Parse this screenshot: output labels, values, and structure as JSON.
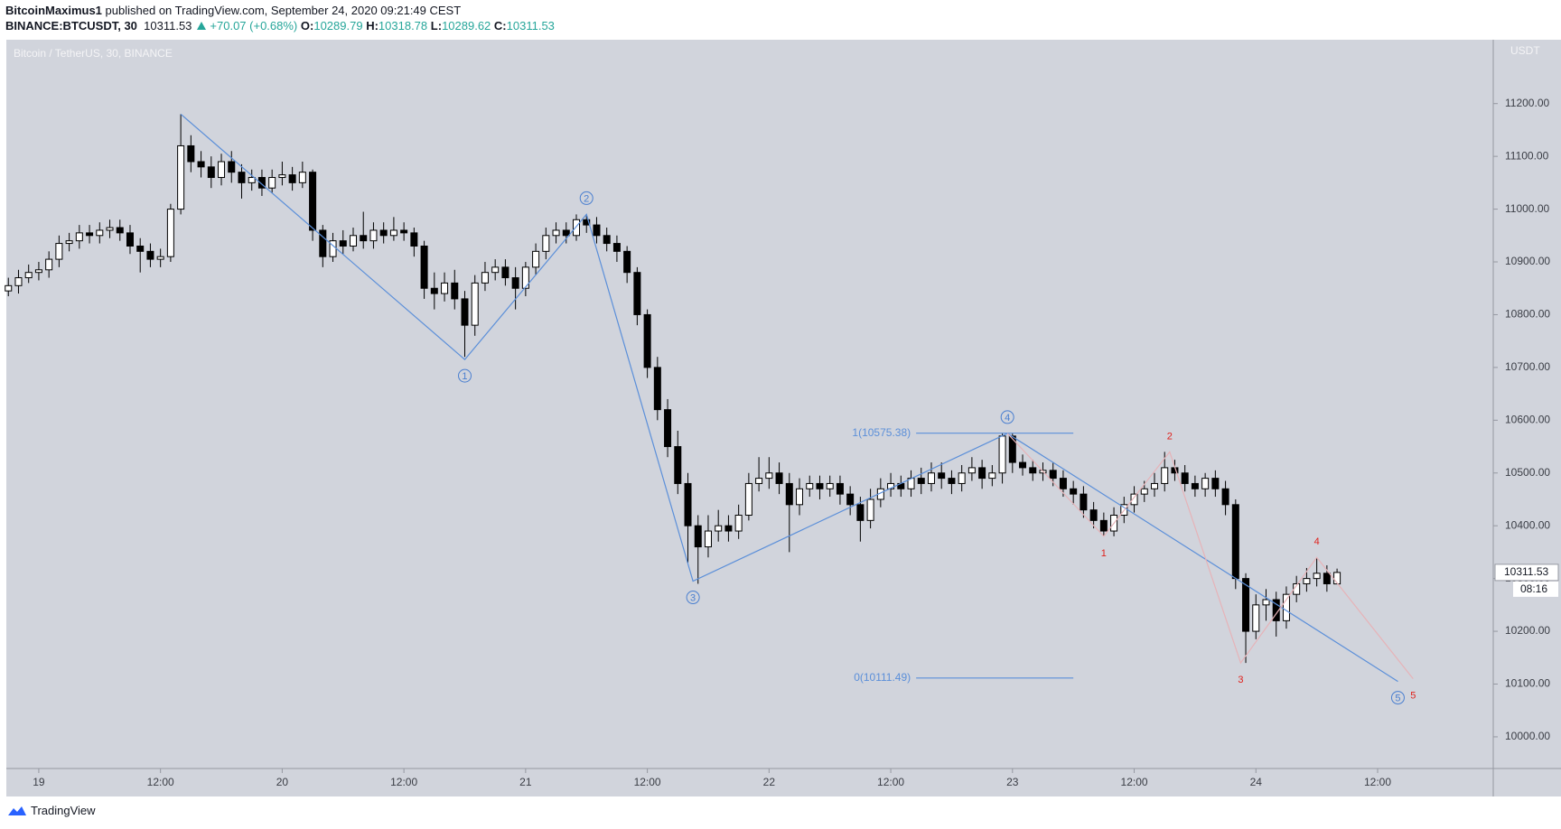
{
  "header": {
    "author": "BitcoinMaximus1",
    "published": "published on TradingView.com, September 24, 2020 09:21:49 CEST",
    "symbol": "BINANCE:BTCUSDT, 30",
    "change": "+70.07 (+0.68%)",
    "ohlc_labels": [
      "O:",
      "H:",
      "L:",
      "C:"
    ]
  },
  "footer": {
    "brand": "TradingView"
  },
  "chart_data": {
    "type": "candlestick",
    "title": "Bitcoin / TetherUS, 30, BINANCE",
    "y_unit": "USDT",
    "countdown": "08:16",
    "up_color": "#ffffff",
    "down_color": "#000000",
    "border_color": "#000000",
    "grid": false,
    "xlim": [
      -3.2,
      143.4
    ],
    "xticks": [
      {
        "value": 0,
        "label": "19"
      },
      {
        "value": 12,
        "label": "12:00"
      },
      {
        "value": 24,
        "label": "20"
      },
      {
        "value": 36,
        "label": "12:00"
      },
      {
        "value": 48,
        "label": "21"
      },
      {
        "value": 60,
        "label": "12:00"
      },
      {
        "value": 72,
        "label": "22"
      },
      {
        "value": 84,
        "label": "12:00"
      },
      {
        "value": 96,
        "label": "23"
      },
      {
        "value": 108,
        "label": "12:00"
      },
      {
        "value": 120,
        "label": "24"
      },
      {
        "value": 132,
        "label": "12:00"
      }
    ],
    "ylim": [
      9940,
      11321
    ],
    "yticks": [
      {
        "value": 10000,
        "label": "10000.00"
      },
      {
        "value": 10100,
        "label": "10100.00"
      },
      {
        "value": 10200,
        "label": "10200.00"
      },
      {
        "value": 10300,
        "label": "10300.00"
      },
      {
        "value": 10400,
        "label": "10400.00"
      },
      {
        "value": 10500,
        "label": "10500.00"
      },
      {
        "value": 10600,
        "label": "10600.00"
      },
      {
        "value": 10700,
        "label": "10700.00"
      },
      {
        "value": 10800,
        "label": "10800.00"
      },
      {
        "value": 10900,
        "label": "10900.00"
      },
      {
        "value": 11000,
        "label": "11000.00"
      },
      {
        "value": 11100,
        "label": "11100.00"
      },
      {
        "value": 11200,
        "label": "11200.00"
      }
    ],
    "x": [
      -3,
      -2,
      -1,
      0,
      1,
      2,
      3,
      4,
      5,
      6,
      7,
      8,
      9,
      10,
      11,
      12,
      13,
      14,
      15,
      16,
      17,
      18,
      19,
      20,
      21,
      22,
      23,
      24,
      25,
      26,
      27,
      28,
      29,
      30,
      31,
      32,
      33,
      34,
      35,
      36,
      37,
      38,
      39,
      40,
      41,
      42,
      43,
      44,
      45,
      46,
      47,
      48,
      49,
      50,
      51,
      52,
      53,
      54,
      55,
      56,
      57,
      58,
      59,
      60,
      61,
      62,
      63,
      64,
      65,
      66,
      67,
      68,
      69,
      70,
      71,
      72,
      73,
      74,
      75,
      76,
      77,
      78,
      79,
      80,
      81,
      82,
      83,
      84,
      85,
      86,
      87,
      88,
      89,
      90,
      91,
      92,
      93,
      94,
      95,
      96,
      97,
      98,
      99,
      100,
      101,
      102,
      103,
      104,
      105,
      106,
      107,
      108,
      109,
      110,
      111,
      112,
      113,
      114,
      115,
      116,
      117,
      118,
      119,
      120,
      121,
      122,
      123,
      124,
      125,
      126,
      127,
      128
    ],
    "open": [
      10845,
      10855,
      10870,
      10880,
      10885,
      10905,
      10935,
      10940,
      10955,
      10950,
      10960,
      10965,
      10955,
      10930,
      10920,
      10905,
      10910,
      11000,
      11120,
      11090,
      11080,
      11060,
      11090,
      11070,
      11050,
      11060,
      11040,
      11060,
      11065,
      11050,
      11070,
      10960,
      10910,
      10940,
      10930,
      10950,
      10940,
      10960,
      10950,
      10960,
      10955,
      10930,
      10850,
      10840,
      10860,
      10830,
      10780,
      10860,
      10880,
      10890,
      10870,
      10850,
      10890,
      10920,
      10950,
      10960,
      10950,
      10980,
      10970,
      10950,
      10935,
      10920,
      10880,
      10800,
      10700,
      10620,
      10550,
      10480,
      10400,
      10360,
      10390,
      10400,
      10390,
      10420,
      10480,
      10490,
      10500,
      10480,
      10440,
      10470,
      10480,
      10470,
      10480,
      10460,
      10440,
      10410,
      10450,
      10470,
      10480,
      10470,
      10490,
      10480,
      10500,
      10490,
      10480,
      10500,
      10510,
      10490,
      10500,
      10570,
      10520,
      10510,
      10500,
      10505,
      10490,
      10470,
      10460,
      10430,
      10410,
      10390,
      10420,
      10440,
      10460,
      10470,
      10480,
      10510,
      10500,
      10480,
      10470,
      10490,
      10470,
      10440,
      10300,
      10200,
      10250,
      10260,
      10220,
      10270,
      10290,
      10300,
      10310,
      10289.79
    ],
    "high": [
      10870,
      10885,
      10895,
      10900,
      10920,
      10950,
      10955,
      10970,
      10970,
      10975,
      10980,
      10980,
      10970,
      10945,
      10935,
      10925,
      11010,
      11180,
      11140,
      11110,
      11100,
      11105,
      11110,
      11085,
      11075,
      11075,
      11075,
      11090,
      11080,
      11090,
      11075,
      10970,
      10955,
      10960,
      10965,
      10995,
      10975,
      10975,
      10985,
      10975,
      10965,
      10940,
      10880,
      10880,
      10885,
      10845,
      10875,
      10900,
      10905,
      10905,
      10890,
      10900,
      10935,
      10965,
      10975,
      10975,
      10990,
      10990,
      10985,
      10965,
      10950,
      10930,
      10890,
      10810,
      10720,
      10640,
      10580,
      10500,
      10420,
      10420,
      10430,
      10420,
      10440,
      10500,
      10530,
      10530,
      10520,
      10500,
      10490,
      10495,
      10495,
      10495,
      10495,
      10475,
      10455,
      10470,
      10490,
      10500,
      10495,
      10505,
      10510,
      10520,
      10520,
      10505,
      10515,
      10530,
      10525,
      10515,
      10575,
      10575,
      10535,
      10525,
      10520,
      10520,
      10505,
      10485,
      10475,
      10445,
      10425,
      10435,
      10455,
      10475,
      10485,
      10500,
      10540,
      10525,
      10515,
      10495,
      10500,
      10505,
      10485,
      10450,
      10310,
      10270,
      10280,
      10275,
      10285,
      10305,
      10320,
      10340,
      10325,
      10318.78
    ],
    "low": [
      10835,
      10840,
      10860,
      10865,
      10870,
      10890,
      10920,
      10925,
      10935,
      10935,
      10945,
      10940,
      10915,
      10880,
      10890,
      10890,
      10900,
      10990,
      11070,
      11060,
      11040,
      11045,
      11050,
      11020,
      11035,
      11025,
      11030,
      11045,
      11035,
      11040,
      10940,
      10890,
      10900,
      10915,
      10920,
      10925,
      10925,
      10935,
      10940,
      10940,
      10910,
      10830,
      10810,
      10825,
      10810,
      10720,
      10760,
      10845,
      10865,
      10855,
      10810,
      10835,
      10875,
      10905,
      10935,
      10935,
      10940,
      10955,
      10935,
      10920,
      10900,
      10860,
      10780,
      10680,
      10600,
      10530,
      10460,
      10330,
      10290,
      10340,
      10370,
      10370,
      10375,
      10410,
      10465,
      10470,
      10460,
      10350,
      10420,
      10455,
      10450,
      10455,
      10440,
      10420,
      10370,
      10395,
      10435,
      10455,
      10455,
      10455,
      10460,
      10465,
      10470,
      10460,
      10465,
      10485,
      10470,
      10475,
      10480,
      10500,
      10495,
      10485,
      10485,
      10475,
      10455,
      10440,
      10415,
      10395,
      10380,
      10380,
      10405,
      10425,
      10445,
      10455,
      10465,
      10485,
      10465,
      10455,
      10455,
      10455,
      10420,
      10280,
      10140,
      10185,
      10220,
      10190,
      10205,
      10255,
      10275,
      10285,
      10275,
      10289.62
    ],
    "close": [
      10855,
      10870,
      10880,
      10885,
      10905,
      10935,
      10940,
      10955,
      10950,
      10960,
      10965,
      10955,
      10930,
      10920,
      10905,
      10910,
      11000,
      11120,
      11090,
      11080,
      11060,
      11090,
      11070,
      11050,
      11060,
      11040,
      11060,
      11065,
      11050,
      11070,
      10960,
      10910,
      10940,
      10930,
      10950,
      10940,
      10960,
      10950,
      10960,
      10955,
      10930,
      10850,
      10840,
      10860,
      10830,
      10780,
      10860,
      10880,
      10890,
      10870,
      10850,
      10890,
      10920,
      10950,
      10960,
      10950,
      10980,
      10970,
      10950,
      10935,
      10920,
      10880,
      10800,
      10700,
      10620,
      10550,
      10480,
      10400,
      10360,
      10390,
      10400,
      10390,
      10420,
      10480,
      10490,
      10500,
      10480,
      10440,
      10470,
      10480,
      10470,
      10480,
      10460,
      10440,
      10410,
      10450,
      10470,
      10480,
      10470,
      10490,
      10480,
      10500,
      10490,
      10480,
      10500,
      10510,
      10490,
      10500,
      10570,
      10520,
      10510,
      10500,
      10505,
      10490,
      10470,
      10460,
      10430,
      10410,
      10390,
      10420,
      10440,
      10460,
      10470,
      10480,
      10510,
      10500,
      10480,
      10470,
      10490,
      10470,
      10440,
      10300,
      10200,
      10250,
      10260,
      10220,
      10270,
      10290,
      10300,
      10310,
      10290,
      10311.53
    ],
    "waves": [
      {
        "color": "#5b8fd9",
        "label_color": "#4a7fd0",
        "label_style": "circle",
        "x": [
          14,
          42,
          54,
          64.5,
          95.5,
          134
        ],
        "y": [
          11180,
          10715,
          10990,
          10295,
          10575,
          10105
        ],
        "labels": [
          null,
          "1",
          "2",
          "3",
          "4",
          "5"
        ]
      },
      {
        "color": "#e6b3b8",
        "label_color": "#e0201b",
        "label_style": "plain",
        "x": [
          95.5,
          105,
          111.5,
          118.5,
          126,
          135.5
        ],
        "y": [
          10575,
          10380,
          10540,
          10140,
          10340,
          10110
        ],
        "labels": [
          null,
          "1",
          "2",
          "3",
          "4",
          "5"
        ]
      }
    ],
    "fib": {
      "color": "#5b8fd9",
      "x": [
        86.5,
        102
      ],
      "levels": [
        {
          "value": 10575.38,
          "label": "1(10575.38)"
        },
        {
          "value": 10111.49,
          "label": "0(10111.49)"
        }
      ]
    }
  }
}
